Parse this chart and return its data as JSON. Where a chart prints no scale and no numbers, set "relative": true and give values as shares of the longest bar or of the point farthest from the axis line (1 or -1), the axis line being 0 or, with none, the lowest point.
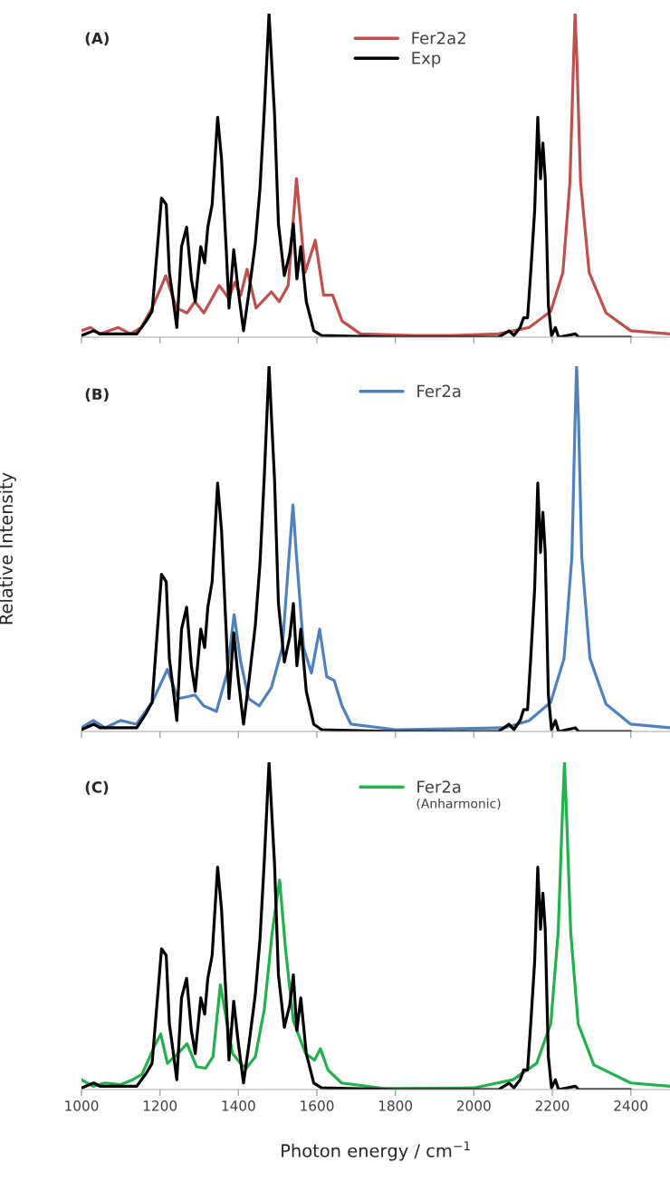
{
  "chart_data": [
    {
      "type": "line",
      "title": "(A)",
      "relative": true,
      "xlim": [
        1000,
        2500
      ],
      "xticks": [
        1000,
        1200,
        1400,
        1600,
        1800,
        2000,
        2200,
        2400
      ],
      "tick_labels": false,
      "legend": "top",
      "grid": false,
      "series": [
        {
          "name": "Fer2a2",
          "color": "#c0504d",
          "x": [
            1000,
            1023,
            1047,
            1094,
            1125,
            1152,
            1180,
            1215,
            1242,
            1269,
            1289,
            1312,
            1351,
            1375,
            1391,
            1406,
            1422,
            1445,
            1484,
            1504,
            1527,
            1548,
            1570,
            1596,
            1617,
            1640,
            1664,
            1711,
            1844,
            1945,
            2063,
            2141,
            2196,
            2227,
            2245,
            2254,
            2258,
            2263,
            2272,
            2294,
            2337,
            2400,
            2500
          ],
          "values": [
            0.02,
            0.03,
            0.01,
            0.03,
            0.01,
            0.03,
            0.09,
            0.19,
            0.09,
            0.075,
            0.11,
            0.075,
            0.16,
            0.12,
            0.17,
            0.13,
            0.21,
            0.09,
            0.14,
            0.11,
            0.16,
            0.49,
            0.2,
            0.3,
            0.13,
            0.13,
            0.05,
            0.01,
            0.005,
            0.005,
            0.01,
            0.03,
            0.08,
            0.2,
            0.48,
            0.85,
            1.0,
            0.85,
            0.48,
            0.2,
            0.075,
            0.02,
            0.01
          ]
        },
        {
          "name": "Exp",
          "color": "#000000",
          "x": [
            1000,
            1031,
            1047,
            1141,
            1165,
            1180,
            1204,
            1216,
            1224,
            1231,
            1243,
            1255,
            1268,
            1280,
            1290,
            1304,
            1314,
            1322,
            1333,
            1347,
            1357,
            1369,
            1376,
            1388,
            1400,
            1413,
            1427,
            1443,
            1455,
            1466,
            1478,
            1492,
            1502,
            1517,
            1531,
            1540,
            1549,
            1559,
            1573,
            1592,
            1612,
            1800,
            2063,
            2090,
            2102,
            2118,
            2127,
            2137,
            2145,
            2155,
            2163,
            2170,
            2176,
            2182,
            2190,
            2198,
            2208,
            2216,
            2259,
            2267,
            2400
          ],
          "values": [
            0.005,
            0.02,
            0.01,
            0.01,
            0.05,
            0.08,
            0.43,
            0.41,
            0.2,
            0.14,
            0.03,
            0.28,
            0.34,
            0.18,
            0.11,
            0.28,
            0.23,
            0.34,
            0.41,
            0.68,
            0.55,
            0.27,
            0.09,
            0.27,
            0.14,
            0.02,
            0.14,
            0.29,
            0.46,
            0.7,
            1.0,
            0.69,
            0.35,
            0.19,
            0.26,
            0.35,
            0.18,
            0.28,
            0.11,
            0.02,
            0.005,
            0,
            0,
            0.02,
            0.005,
            0.03,
            0.06,
            0.06,
            0.2,
            0.39,
            0.68,
            0.49,
            0.6,
            0.49,
            0.1,
            0.005,
            0.03,
            0,
            0.01,
            0,
            0
          ]
        }
      ]
    },
    {
      "type": "line",
      "title": "(B)",
      "ylabel": "Relative Intensity",
      "relative": true,
      "xlim": [
        1000,
        2500
      ],
      "xticks": [
        1000,
        1200,
        1400,
        1600,
        1800,
        2000,
        2200,
        2400
      ],
      "tick_labels": false,
      "legend": "top",
      "grid": false,
      "series": [
        {
          "name": "Fer2a",
          "color": "#4f81bd",
          "x": [
            1000,
            1030,
            1060,
            1100,
            1140,
            1180,
            1219,
            1246,
            1269,
            1289,
            1312,
            1344,
            1371,
            1389,
            1406,
            1426,
            1453,
            1484,
            1512,
            1529,
            1539,
            1548,
            1566,
            1586,
            1607,
            1625,
            1644,
            1664,
            1687,
            1800,
            2078,
            2141,
            2196,
            2230,
            2250,
            2258,
            2262,
            2267,
            2275,
            2296,
            2337,
            2400,
            2500
          ],
          "values": [
            0.01,
            0.03,
            0.01,
            0.03,
            0.02,
            0.08,
            0.17,
            0.09,
            0.095,
            0.1,
            0.07,
            0.055,
            0.16,
            0.32,
            0.19,
            0.09,
            0.07,
            0.12,
            0.23,
            0.48,
            0.62,
            0.48,
            0.23,
            0.16,
            0.28,
            0.15,
            0.14,
            0.07,
            0.02,
            0.005,
            0.01,
            0.03,
            0.08,
            0.2,
            0.48,
            0.85,
            1.0,
            0.85,
            0.48,
            0.2,
            0.075,
            0.02,
            0.01
          ]
        },
        {
          "color": "#000000",
          "x": [
            1000,
            1031,
            1047,
            1141,
            1165,
            1180,
            1204,
            1216,
            1224,
            1231,
            1243,
            1255,
            1268,
            1280,
            1290,
            1304,
            1314,
            1322,
            1333,
            1347,
            1357,
            1369,
            1376,
            1388,
            1400,
            1413,
            1427,
            1443,
            1455,
            1466,
            1478,
            1492,
            1502,
            1517,
            1531,
            1540,
            1549,
            1559,
            1573,
            1592,
            1612,
            1800,
            2063,
            2090,
            2102,
            2118,
            2127,
            2137,
            2145,
            2155,
            2163,
            2170,
            2176,
            2182,
            2190,
            2198,
            2208,
            2216,
            2259,
            2267,
            2400
          ],
          "values": [
            0.005,
            0.02,
            0.01,
            0.01,
            0.05,
            0.08,
            0.43,
            0.41,
            0.2,
            0.14,
            0.03,
            0.28,
            0.34,
            0.18,
            0.11,
            0.28,
            0.23,
            0.34,
            0.41,
            0.68,
            0.55,
            0.27,
            0.09,
            0.27,
            0.14,
            0.02,
            0.14,
            0.29,
            0.46,
            0.7,
            1.0,
            0.69,
            0.35,
            0.19,
            0.26,
            0.35,
            0.18,
            0.28,
            0.11,
            0.02,
            0.005,
            0,
            0,
            0.02,
            0.005,
            0.03,
            0.06,
            0.06,
            0.2,
            0.39,
            0.68,
            0.49,
            0.6,
            0.49,
            0.1,
            0.005,
            0.03,
            0,
            0.01,
            0,
            0
          ]
        }
      ]
    },
    {
      "type": "line",
      "title": "(C)",
      "xlabel": "Photon energy / cm$^{−1}$",
      "relative": true,
      "xlim": [
        1000,
        2500
      ],
      "xticks": [
        1000,
        1200,
        1400,
        1600,
        1800,
        2000,
        2200,
        2400
      ],
      "tick_labels": "x",
      "legend": "top",
      "grid": false,
      "annotations": [
        "(Anharmonic)"
      ],
      "series": [
        {
          "name": "Fer2a",
          "color": "#22b14c",
          "x": [
            1000,
            1030,
            1060,
            1100,
            1130,
            1154,
            1185,
            1202,
            1219,
            1246,
            1269,
            1293,
            1316,
            1335,
            1354,
            1370,
            1385,
            1405,
            1420,
            1443,
            1466,
            1486,
            1505,
            1520,
            1540,
            1571,
            1594,
            1609,
            1628,
            1663,
            1771,
            2000,
            2100,
            2160,
            2196,
            2215,
            2226,
            2231,
            2236,
            2247,
            2266,
            2306,
            2400,
            2500
          ],
          "values": [
            0.03,
            0.01,
            0.02,
            0.015,
            0.03,
            0.046,
            0.13,
            0.17,
            0.08,
            0.11,
            0.14,
            0.07,
            0.065,
            0.1,
            0.32,
            0.21,
            0.11,
            0.08,
            0.065,
            0.1,
            0.245,
            0.48,
            0.64,
            0.43,
            0.21,
            0.11,
            0.09,
            0.125,
            0.06,
            0.02,
            0.003,
            0.005,
            0.03,
            0.08,
            0.2,
            0.48,
            0.85,
            1.0,
            0.85,
            0.48,
            0.2,
            0.075,
            0.02,
            0.01
          ]
        },
        {
          "color": "#000000",
          "x": [
            1000,
            1031,
            1047,
            1141,
            1165,
            1180,
            1204,
            1216,
            1224,
            1231,
            1243,
            1255,
            1268,
            1280,
            1290,
            1304,
            1314,
            1322,
            1333,
            1347,
            1357,
            1369,
            1376,
            1388,
            1400,
            1413,
            1427,
            1443,
            1455,
            1466,
            1478,
            1492,
            1502,
            1517,
            1531,
            1540,
            1549,
            1559,
            1573,
            1592,
            1612,
            1800,
            2063,
            2090,
            2102,
            2118,
            2127,
            2137,
            2145,
            2155,
            2163,
            2170,
            2176,
            2182,
            2190,
            2198,
            2208,
            2216,
            2259,
            2267,
            2400
          ],
          "values": [
            0.005,
            0.02,
            0.01,
            0.01,
            0.05,
            0.08,
            0.43,
            0.41,
            0.2,
            0.14,
            0.03,
            0.28,
            0.34,
            0.18,
            0.11,
            0.28,
            0.23,
            0.34,
            0.41,
            0.68,
            0.55,
            0.27,
            0.09,
            0.27,
            0.14,
            0.02,
            0.14,
            0.29,
            0.46,
            0.7,
            1.0,
            0.69,
            0.35,
            0.19,
            0.26,
            0.35,
            0.18,
            0.28,
            0.11,
            0.02,
            0.005,
            0,
            0,
            0.02,
            0.005,
            0.03,
            0.06,
            0.06,
            0.2,
            0.39,
            0.68,
            0.49,
            0.6,
            0.49,
            0.1,
            0.005,
            0.03,
            0,
            0.01,
            0,
            0
          ]
        }
      ]
    }
  ]
}
